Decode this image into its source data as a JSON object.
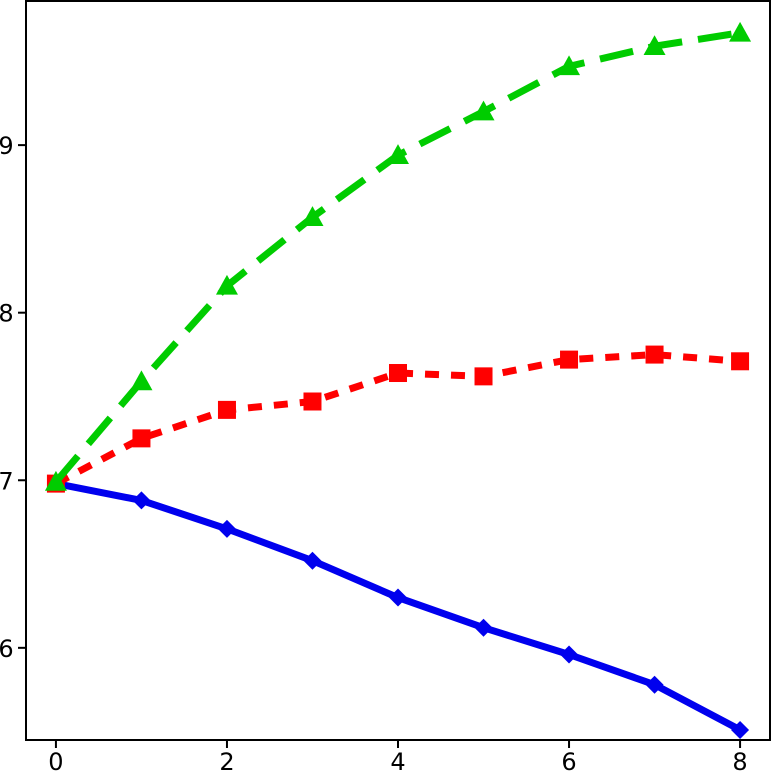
{
  "chart_data": {
    "type": "line",
    "title": "",
    "xlabel": "",
    "ylabel": "",
    "x": [
      0,
      1,
      2,
      3,
      4,
      5,
      6,
      7,
      8
    ],
    "xlim": [
      -0.35,
      8.35
    ],
    "ylim": [
      5.45,
      9.86
    ],
    "x_ticks": [
      0,
      2,
      4,
      6,
      8
    ],
    "y_ticks": [
      6,
      7,
      8,
      9
    ],
    "grid": false,
    "legend": "none",
    "series": [
      {
        "values": [
          6.98,
          6.88,
          6.71,
          6.52,
          6.3,
          6.12,
          5.96,
          5.78,
          5.51
        ],
        "color": "#0000ee",
        "line_style": "solid",
        "marker": "diamond"
      },
      {
        "values": [
          6.98,
          7.25,
          7.42,
          7.47,
          7.64,
          7.62,
          7.72,
          7.75,
          7.71
        ],
        "color": "#ff0000",
        "line_style": "dotted",
        "marker": "square"
      },
      {
        "values": [
          6.99,
          7.59,
          8.16,
          8.57,
          8.94,
          9.2,
          9.47,
          9.59,
          9.67
        ],
        "color": "#00cc00",
        "line_style": "dashed",
        "marker": "triangle"
      }
    ]
  }
}
